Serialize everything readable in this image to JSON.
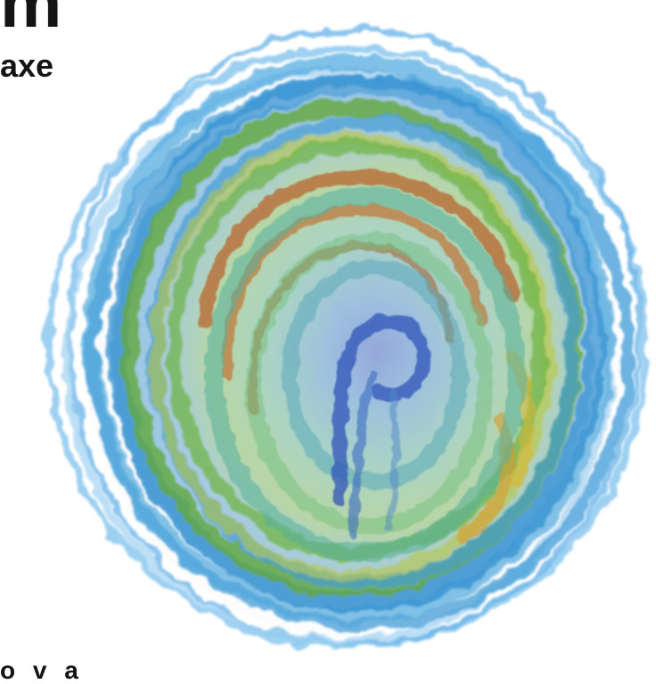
{
  "cover": {
    "title_fragment": "m",
    "subtitle_fragment": "axe",
    "bottom_fragment": "o v a"
  },
  "artwork": {
    "description_icon": "watercolor-circle-art",
    "colors": {
      "outer_blue": "#3c9bd8",
      "light_blue": "#8cc8ee",
      "green": "#5fa83a",
      "yellow_green": "#b8c83a",
      "rust": "#b8612a",
      "teal": "#4fae9a",
      "deep_blue": "#2a4fb8"
    }
  }
}
